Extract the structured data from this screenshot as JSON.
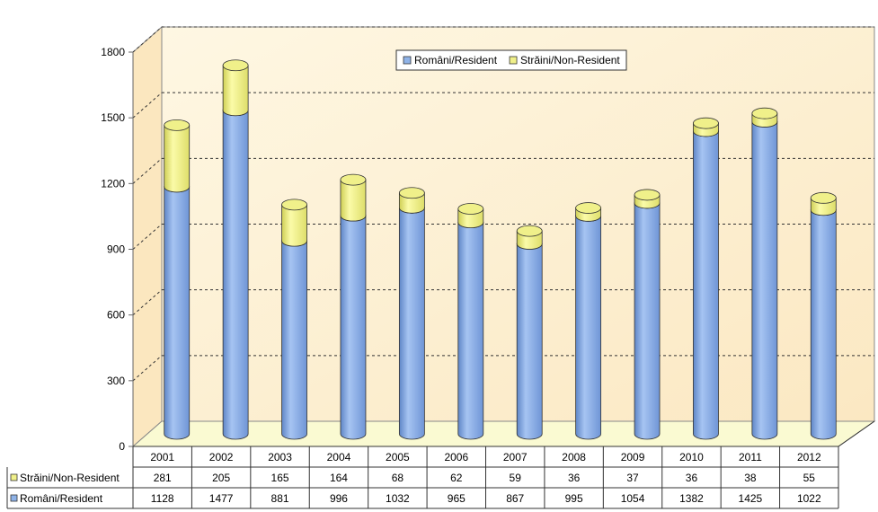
{
  "chart_data": {
    "type": "bar",
    "stacked": true,
    "three_d": true,
    "categories": [
      "2001",
      "2002",
      "2003",
      "2004",
      "2005",
      "2006",
      "2007",
      "2008",
      "2009",
      "2010",
      "2011",
      "2012"
    ],
    "series": [
      {
        "name": "Români/Resident",
        "values": [
          1128,
          1477,
          881,
          996,
          1032,
          965,
          867,
          995,
          1054,
          1382,
          1425,
          1022
        ],
        "color": "#8fb3e8"
      },
      {
        "name": "Străini/Non-Resident",
        "values": [
          281,
          205,
          165,
          164,
          68,
          62,
          59,
          36,
          37,
          36,
          38,
          55
        ],
        "color": "#f0f08a"
      }
    ],
    "ylim": [
      0,
      1800
    ],
    "yticks": [
      "0",
      "300",
      "600",
      "900",
      "1200",
      "1500",
      "1800"
    ],
    "grid": true,
    "legend_position": "top-right",
    "data_table": true,
    "background_color": "#fdf0d3",
    "floor_color": "#fafad2"
  }
}
